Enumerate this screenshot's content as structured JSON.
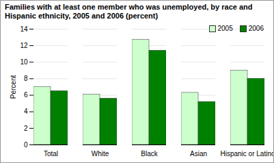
{
  "chart_data": {
    "type": "bar",
    "title": "Families with at least one member who was unemployed, by race and Hispanic ethnicity, 2005 and 2006 (percent)",
    "categories": [
      "Total",
      "White",
      "Black",
      "Asian",
      "Hispanic or Latino"
    ],
    "series": [
      {
        "name": "2005",
        "color": "#ccffcc",
        "values": [
          7.0,
          6.1,
          12.7,
          6.3,
          9.0
        ]
      },
      {
        "name": "2006",
        "color": "#008000",
        "values": [
          6.5,
          5.6,
          11.4,
          5.2,
          8.0
        ]
      }
    ],
    "ylabel": "Percent",
    "ylim": [
      0,
      14
    ],
    "yticks": [
      0,
      2,
      4,
      6,
      8,
      10,
      12,
      14
    ],
    "grid": true,
    "legend": "top-right"
  }
}
